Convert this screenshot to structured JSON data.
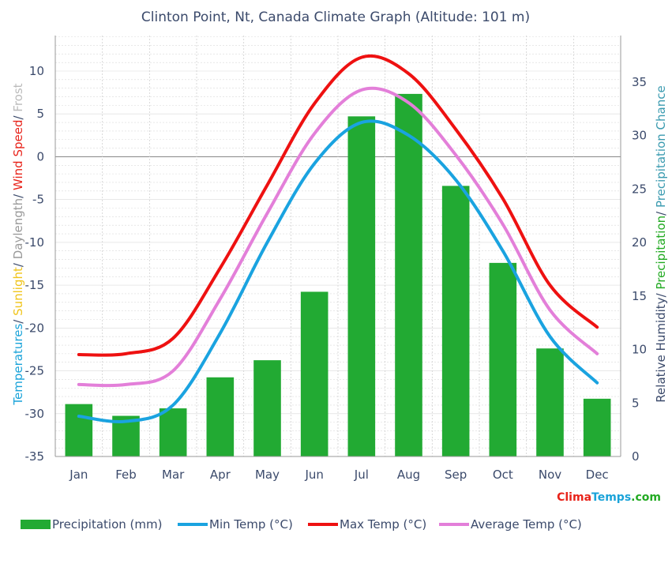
{
  "title": "Clinton Point, Nt, Canada Climate Graph (Altitude: 101 m)",
  "left_axis_label": {
    "parts": [
      {
        "text": "Temperatures",
        "color": "#1aa3d9"
      },
      {
        "text": "/ ",
        "color": "#3b4a6b"
      },
      {
        "text": "Sunlight",
        "color": "#f0c419"
      },
      {
        "text": "/ ",
        "color": "#3b4a6b"
      },
      {
        "text": "Daylength",
        "color": "#999999"
      },
      {
        "text": "/ ",
        "color": "#3b4a6b"
      },
      {
        "text": "Wind Speed",
        "color": "#e8231a"
      },
      {
        "text": "/ ",
        "color": "#3b4a6b"
      },
      {
        "text": "Frost",
        "color": "#bbbbbb"
      }
    ]
  },
  "right_axis_label": {
    "parts": [
      {
        "text": "Relative Humidity",
        "color": "#3b4a6b"
      },
      {
        "text": "/ ",
        "color": "#3b4a6b"
      },
      {
        "text": "Precipitation",
        "color": "#22aa22"
      },
      {
        "text": "/ ",
        "color": "#3b4a6b"
      },
      {
        "text": "Precipitation Chance",
        "color": "#3b9bb0"
      }
    ]
  },
  "brand": {
    "part1": "Clima",
    "part2": "Temps",
    "part3": ".com",
    "color1": "#e8231a",
    "color2": "#1aa3d9",
    "color3": "#22aa22"
  },
  "chart_data": {
    "type": "bar",
    "categories": [
      "Jan",
      "Feb",
      "Mar",
      "Apr",
      "May",
      "Jun",
      "Jul",
      "Aug",
      "Sep",
      "Oct",
      "Nov",
      "Dec"
    ],
    "left_axis": {
      "ylim": [
        -35,
        10
      ],
      "ticks": [
        -35,
        -30,
        -25,
        -20,
        -15,
        -10,
        -5,
        0,
        5,
        10
      ]
    },
    "right_axis": {
      "ylim": [
        0,
        35
      ],
      "ticks": [
        0,
        5,
        10,
        15,
        20,
        25,
        30,
        35
      ]
    },
    "series": [
      {
        "name": "Precipitation (mm)",
        "kind": "bar",
        "axis": "right",
        "color": "#22aa33",
        "values": [
          4.9,
          3.8,
          4.5,
          7.4,
          9.0,
          15.4,
          31.8,
          33.9,
          25.3,
          18.1,
          10.1,
          5.4
        ]
      },
      {
        "name": "Min Temp (°C)",
        "kind": "line",
        "axis": "left",
        "color": "#1aa3e0",
        "values": [
          -30.3,
          -30.9,
          -29.0,
          -20.6,
          -10.0,
          -0.8,
          4.0,
          2.5,
          -2.7,
          -11.0,
          -21.0,
          -26.4
        ]
      },
      {
        "name": "Max Temp (°C)",
        "kind": "line",
        "axis": "left",
        "color": "#ee1111",
        "values": [
          -23.1,
          -23.0,
          -21.2,
          -13.0,
          -3.3,
          6.2,
          11.6,
          9.7,
          3.2,
          -4.9,
          -15.0,
          -19.9
        ]
      },
      {
        "name": "Average Temp (°C)",
        "kind": "line",
        "axis": "left",
        "color": "#e37fd9",
        "values": [
          -26.6,
          -26.6,
          -25.0,
          -16.6,
          -6.6,
          2.7,
          7.8,
          6.3,
          0.2,
          -7.9,
          -17.9,
          -23.0
        ]
      }
    ],
    "grid": true,
    "legend_position": "bottom"
  }
}
